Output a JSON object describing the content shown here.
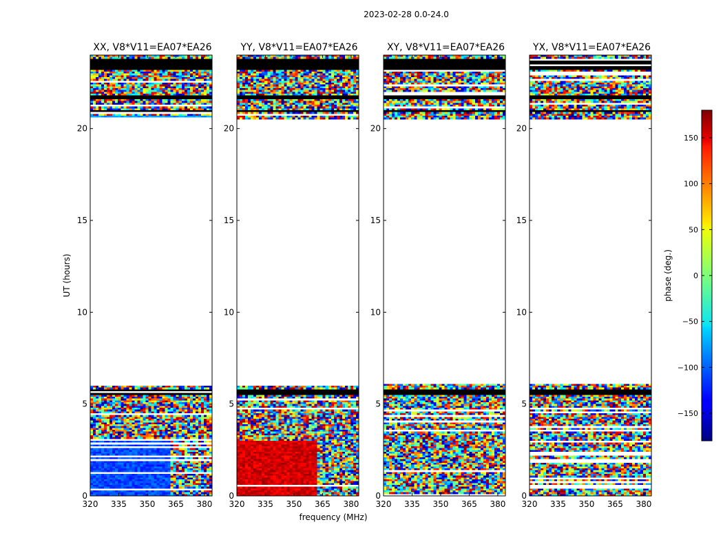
{
  "figure": {
    "title": "2023-02-28 0.0-24.0",
    "xlabel": "frequency (MHz)",
    "ylabel": "UT (hours)",
    "colorbar_label": "phase (deg.)"
  },
  "chart_data": {
    "type": "heatmap",
    "panels": [
      {
        "title": "XX, V8*V11=EA07*EA26",
        "pattern": "xx"
      },
      {
        "title": "YY, V8*V11=EA07*EA26",
        "pattern": "yy"
      },
      {
        "title": "XY, V8*V11=EA07*EA26",
        "pattern": "noise"
      },
      {
        "title": "YX, V8*V11=EA07*EA26",
        "pattern": "noise"
      }
    ],
    "xlim": [
      320,
      384
    ],
    "xticks": [
      320,
      335,
      350,
      365,
      380
    ],
    "ylim": [
      0,
      24
    ],
    "yticks": [
      0,
      5,
      10,
      15,
      20
    ],
    "colorbar": {
      "range": [
        -180,
        180
      ],
      "ticks": [
        -150,
        -100,
        -50,
        0,
        50,
        100,
        150
      ],
      "colormap": "jet"
    },
    "data_segments_hours": [
      [
        0.0,
        6.1
      ],
      [
        20.5,
        24.0
      ]
    ],
    "gaps_hours": [
      [
        6.1,
        20.5
      ]
    ],
    "xx_low_hours_phase_deg": -110,
    "yy_low_hours_phase_deg": 150,
    "coherent_freq_max_mhz": 362
  }
}
